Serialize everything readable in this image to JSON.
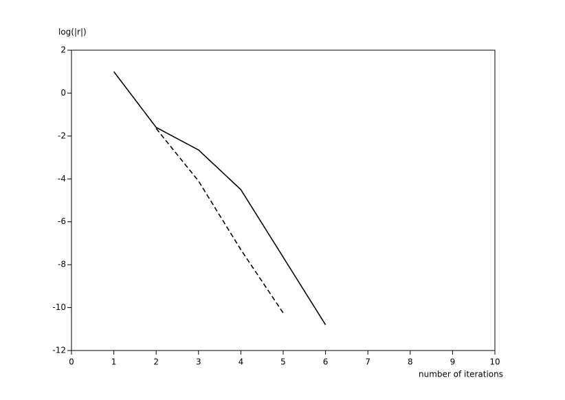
{
  "chart_data": {
    "type": "line",
    "y_label": "log(|r|)",
    "x_label": "number of iterations",
    "x": [
      1,
      2,
      3,
      4,
      5,
      6
    ],
    "series": [
      {
        "color": "#000000",
        "dash": false,
        "values": [
          1.0,
          -1.6,
          -2.65,
          -4.5,
          -7.65,
          -10.8
        ]
      },
      {
        "color": "#000000",
        "dash": true,
        "values": [
          null,
          -1.65,
          -4.1,
          -7.3,
          -10.25,
          null
        ]
      }
    ],
    "xlim": [
      0,
      10
    ],
    "xticks": [
      0,
      1,
      2,
      3,
      4,
      5,
      6,
      7,
      8,
      9,
      10
    ],
    "ylim": [
      -12,
      2
    ],
    "yticks": [
      -12,
      -10,
      -8,
      -6,
      -4,
      -2,
      0,
      2
    ],
    "grid": false
  }
}
